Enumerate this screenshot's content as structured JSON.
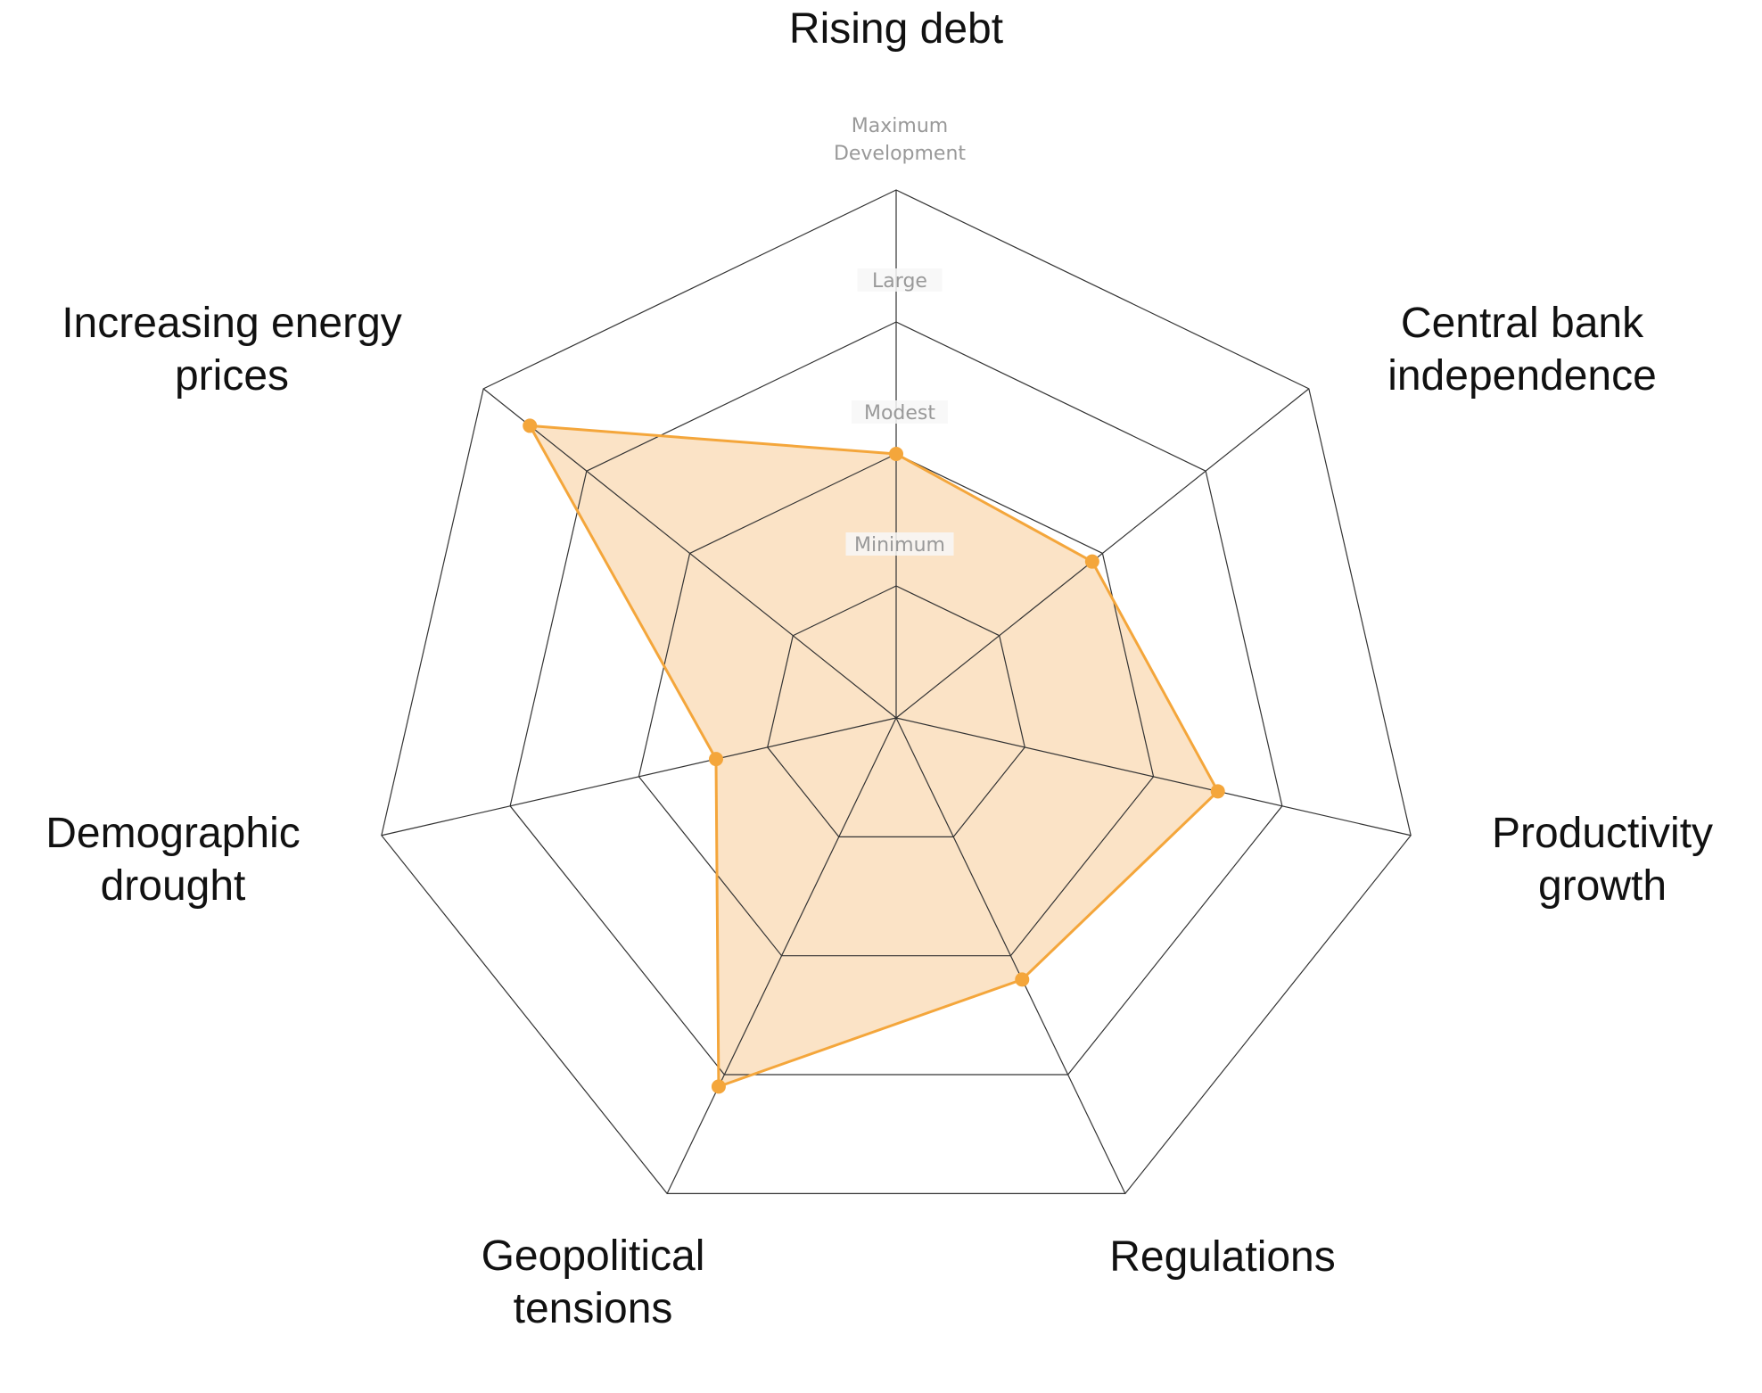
{
  "chart_data": {
    "type": "radar",
    "axes": [
      {
        "label_lines": [
          "Rising debt"
        ]
      },
      {
        "label_lines": [
          "Central bank",
          "independence"
        ]
      },
      {
        "label_lines": [
          "Productivity",
          "growth"
        ]
      },
      {
        "label_lines": [
          "Regulations"
        ]
      },
      {
        "label_lines": [
          "Geopolitical",
          "tensions"
        ]
      },
      {
        "label_lines": [
          "Demographic",
          "drought"
        ]
      },
      {
        "label_lines": [
          "Increasing energy",
          "prices"
        ]
      }
    ],
    "tick_labels": [
      {
        "level": 1,
        "lines": [
          "Minimum"
        ]
      },
      {
        "level": 2,
        "lines": [
          "Modest"
        ]
      },
      {
        "level": 3,
        "lines": [
          "Large"
        ]
      },
      {
        "level": 4,
        "lines": [
          "Maximum",
          "Development"
        ]
      }
    ],
    "range": [
      0,
      4
    ],
    "series": [
      {
        "values": [
          2.0,
          1.9,
          2.5,
          2.2,
          3.1,
          1.4,
          3.55
        ],
        "color": "#f4a63b",
        "fill": "#fbe3c6"
      }
    ],
    "grid": true,
    "grid_color": "#333333"
  }
}
